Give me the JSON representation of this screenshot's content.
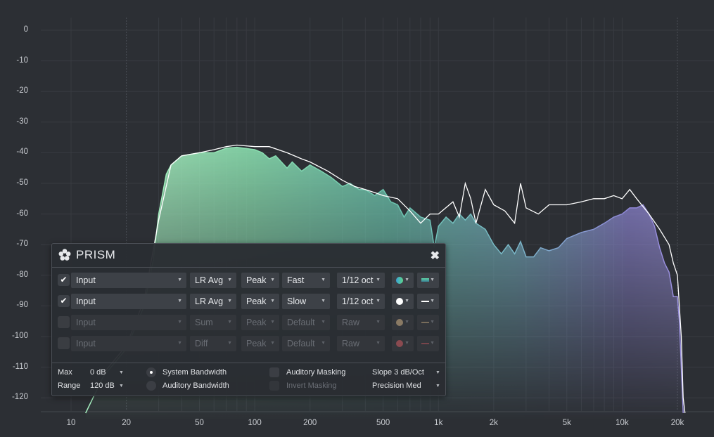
{
  "analyzer": {
    "y_labels": [
      "0",
      "-10",
      "-20",
      "-30",
      "-40",
      "-50",
      "-60",
      "-70",
      "-80",
      "-90",
      "-100",
      "-110",
      "-120"
    ],
    "x_labels": [
      {
        "f": 10,
        "label": "10"
      },
      {
        "f": 20,
        "label": "20"
      },
      {
        "f": 50,
        "label": "50"
      },
      {
        "f": 100,
        "label": "100"
      },
      {
        "f": 200,
        "label": "200"
      },
      {
        "f": 500,
        "label": "500"
      },
      {
        "f": 1000,
        "label": "1k"
      },
      {
        "f": 2000,
        "label": "2k"
      },
      {
        "f": 5000,
        "label": "5k"
      },
      {
        "f": 10000,
        "label": "10k"
      },
      {
        "f": 20000,
        "label": "20k"
      }
    ],
    "colors": {
      "bg": "#2c2f34",
      "grid": "#383b41",
      "fill_low": "#8be0b0",
      "fill_mid": "#6fb9b9",
      "fill_high": "#8f86d6",
      "slow_line": "#ffffff"
    }
  },
  "panel": {
    "title": "PRISM",
    "close_symbol": "✖",
    "rows": [
      {
        "enabled": true,
        "checkmark": "✔",
        "source": "Input",
        "channel": "LR Avg",
        "mode": "Peak",
        "speed": "Fast",
        "resolution": "1/12 oct",
        "color": "#5fc8a0",
        "style": "gradient"
      },
      {
        "enabled": true,
        "checkmark": "✔",
        "source": "Input",
        "channel": "LR Avg",
        "mode": "Peak",
        "speed": "Slow",
        "resolution": "1/12 oct",
        "color": "#ffffff",
        "style": "line"
      },
      {
        "enabled": false,
        "checkmark": "",
        "source": "Input",
        "channel": "Sum",
        "mode": "Peak",
        "speed": "Default",
        "resolution": "Raw",
        "color": "#8a7a64",
        "style": "line"
      },
      {
        "enabled": false,
        "checkmark": "",
        "source": "Input",
        "channel": "Diff",
        "mode": "Peak",
        "speed": "Default",
        "resolution": "Raw",
        "color": "#8a4a50",
        "style": "line"
      }
    ],
    "settings": {
      "max_label": "Max",
      "max_value": "0 dB",
      "range_label": "Range",
      "range_value": "120 dB",
      "system_bandwidth": "System Bandwidth",
      "auditory_bandwidth": "Auditory Bandwidth",
      "auditory_masking": "Auditory Masking",
      "invert_masking": "Invert Masking",
      "slope": "Slope 3 dB/Oct",
      "precision": "Precision Med"
    }
  }
}
